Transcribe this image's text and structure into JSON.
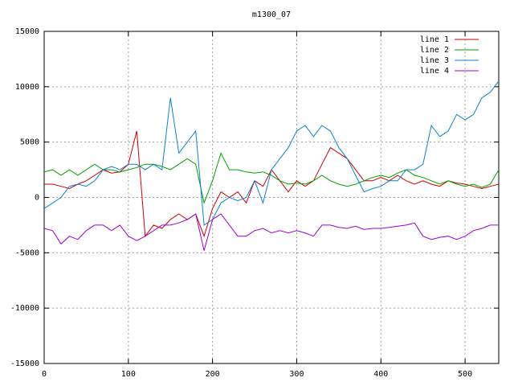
{
  "chart_data": {
    "type": "line",
    "title": "m1300_07",
    "x": [
      0,
      10,
      20,
      30,
      40,
      50,
      60,
      70,
      80,
      90,
      100,
      110,
      120,
      130,
      140,
      150,
      160,
      170,
      180,
      190,
      200,
      210,
      220,
      230,
      240,
      250,
      260,
      270,
      280,
      290,
      300,
      310,
      320,
      330,
      340,
      350,
      360,
      370,
      380,
      390,
      400,
      410,
      420,
      430,
      440,
      450,
      460,
      470,
      480,
      490,
      500,
      510,
      520,
      530,
      540
    ],
    "series": [
      {
        "name": "line 1",
        "color": "#cc0000",
        "values": [
          1200,
          1200,
          1000,
          800,
          1200,
          1500,
          2000,
          2500,
          2200,
          2300,
          3000,
          6000,
          -3500,
          -2500,
          -2800,
          -2000,
          -1500,
          -2000,
          -1500,
          -3500,
          -1000,
          500,
          0,
          500,
          -500,
          1500,
          1000,
          2500,
          1500,
          500,
          1500,
          1000,
          1500,
          3000,
          4500,
          4000,
          3500,
          2500,
          1500,
          1500,
          1800,
          1500,
          2000,
          1500,
          1200,
          1500,
          1200,
          1000,
          1500,
          1300,
          1200,
          1000,
          800,
          1000,
          1200
        ]
      },
      {
        "name": "line 2",
        "color": "#00a000",
        "values": [
          2300,
          2500,
          2000,
          2500,
          2000,
          2500,
          3000,
          2500,
          2500,
          2300,
          2500,
          2700,
          3000,
          3000,
          2800,
          2500,
          3000,
          3500,
          3000,
          -500,
          1500,
          4000,
          2500,
          2500,
          2300,
          2200,
          2300,
          2000,
          1500,
          1200,
          1300,
          1200,
          1500,
          2000,
          1500,
          1200,
          1000,
          1200,
          1500,
          1800,
          2000,
          1800,
          2200,
          2500,
          2000,
          1800,
          1500,
          1200,
          1500,
          1200,
          1000,
          1200,
          900,
          1200,
          2500
        ]
      },
      {
        "name": "line 3",
        "color": "#1080d0",
        "values": [
          -1000,
          -500,
          0,
          1000,
          1200,
          1000,
          1500,
          2500,
          2800,
          2500,
          3000,
          3000,
          2500,
          3000,
          2500,
          9000,
          4000,
          5000,
          6000,
          -2500,
          -2000,
          -500,
          0,
          -300,
          0,
          1500,
          -500,
          2500,
          3500,
          4500,
          6000,
          6500,
          5500,
          6500,
          6000,
          4500,
          3500,
          2000,
          500,
          800,
          1000,
          1500,
          1500,
          2500,
          2500,
          3000,
          6500,
          5500,
          6000,
          7500,
          7000,
          7500,
          9000,
          9500,
          10500
        ]
      },
      {
        "name": "line 4",
        "color": "#a000d0",
        "values": [
          -2800,
          -3000,
          -4200,
          -3500,
          -3800,
          -3000,
          -2500,
          -2500,
          -3000,
          -2500,
          -3500,
          -3900,
          -3500,
          -3000,
          -2500,
          -2500,
          -2300,
          -2000,
          -1500,
          -4800,
          -2000,
          -1500,
          -2500,
          -3500,
          -3500,
          -3000,
          -2800,
          -3200,
          -3000,
          -3200,
          -3000,
          -3200,
          -3500,
          -2500,
          -2500,
          -2700,
          -2800,
          -2600,
          -2900,
          -2800,
          -2800,
          -2700,
          -2600,
          -2500,
          -2300,
          -3500,
          -3800,
          -3600,
          -3500,
          -3800,
          -3500,
          -3000,
          -2800,
          -2500,
          -2500
        ]
      }
    ],
    "xlim": [
      0,
      540
    ],
    "xticks": [
      0,
      100,
      200,
      300,
      400,
      500
    ],
    "ylim": [
      -15000,
      15000
    ],
    "yticks": [
      -15000,
      -10000,
      -5000,
      0,
      5000,
      10000,
      15000
    ],
    "grid": true,
    "legend": "upper right"
  }
}
